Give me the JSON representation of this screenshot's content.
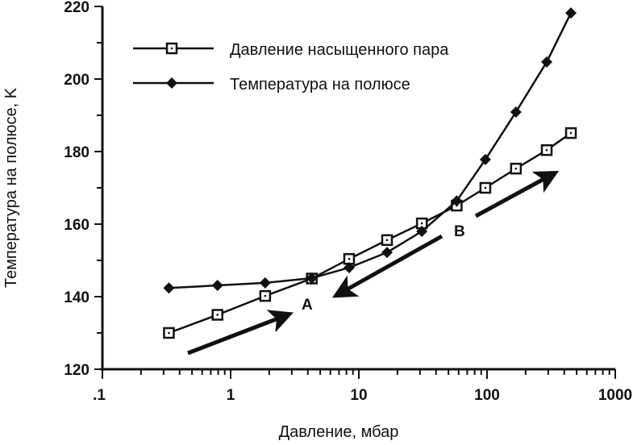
{
  "chart_data": {
    "type": "line",
    "xlabel": "Давление, мбар",
    "ylabel": "Температура на полюсе, K",
    "xscale": "log",
    "xlim": [
      0.1,
      1000
    ],
    "ylim": [
      120,
      220
    ],
    "xticks": [
      ".1",
      "1",
      "10",
      "100",
      "1000"
    ],
    "yticks": [
      "120",
      "140",
      "160",
      "180",
      "200",
      "220"
    ],
    "grid": false,
    "legend_position": "top-left",
    "series": [
      {
        "name": "Давление насыщенного пара",
        "marker": "open-square",
        "x": [
          0.33,
          0.79,
          1.86,
          4.3,
          8.4,
          16.6,
          31,
          58,
          97,
          168,
          292,
          451
        ],
        "y": [
          130,
          135,
          140.2,
          145,
          150.4,
          155.6,
          160.2,
          165.1,
          170,
          175.3,
          180.4,
          185.1
        ]
      },
      {
        "name": "Температура на полюсе",
        "marker": "filled-diamond",
        "x": [
          0.33,
          0.79,
          1.86,
          4.3,
          8.4,
          16.6,
          31,
          58,
          97,
          168,
          292,
          451
        ],
        "y": [
          142.4,
          143.1,
          143.8,
          145.1,
          148,
          152.2,
          158,
          166.4,
          177.8,
          190.9,
          204.7,
          218.2
        ]
      }
    ],
    "annotations": [
      "A",
      "B"
    ]
  }
}
